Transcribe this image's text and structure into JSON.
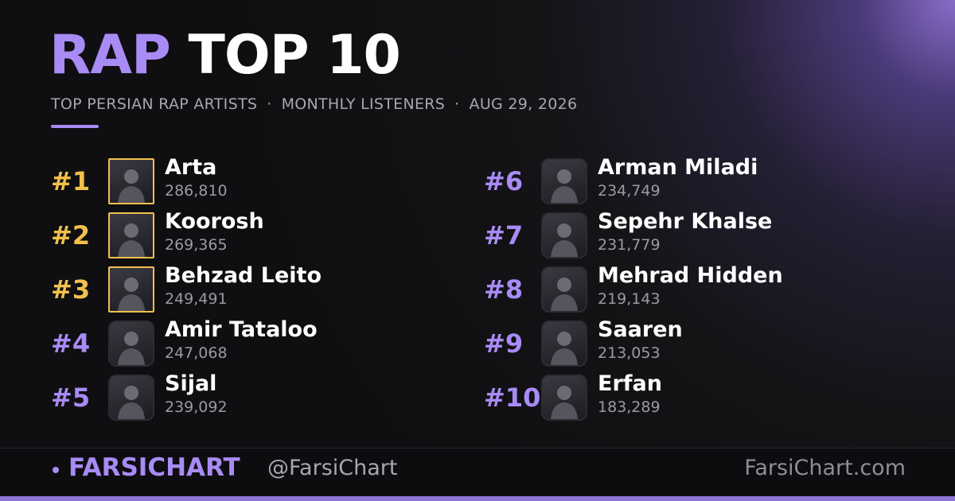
{
  "header": {
    "title_accent": "RAP",
    "title_rest": "TOP 10",
    "subtitle": [
      "TOP PERSIAN RAP ARTISTS",
      "MONTHLY LISTENERS",
      "AUG 29, 2026"
    ]
  },
  "entries": [
    {
      "rank": "#1",
      "name": "Arta",
      "listeners": "286,810"
    },
    {
      "rank": "#2",
      "name": "Koorosh",
      "listeners": "269,365"
    },
    {
      "rank": "#3",
      "name": "Behzad Leito",
      "listeners": "249,491"
    },
    {
      "rank": "#4",
      "name": "Amir Tataloo",
      "listeners": "247,068"
    },
    {
      "rank": "#5",
      "name": "Sijal",
      "listeners": "239,092"
    },
    {
      "rank": "#6",
      "name": "Arman Miladi",
      "listeners": "234,749"
    },
    {
      "rank": "#7",
      "name": "Sepehr Khalse",
      "listeners": "231,779"
    },
    {
      "rank": "#8",
      "name": "Mehrad Hidden",
      "listeners": "219,143"
    },
    {
      "rank": "#9",
      "name": "Saaren",
      "listeners": "213,053"
    },
    {
      "rank": "#10",
      "name": "Erfan",
      "listeners": "183,289"
    }
  ],
  "footer": {
    "brand": "FARSICHART",
    "handle": "@FarsiChart",
    "site": "FarsiChart.com"
  }
}
